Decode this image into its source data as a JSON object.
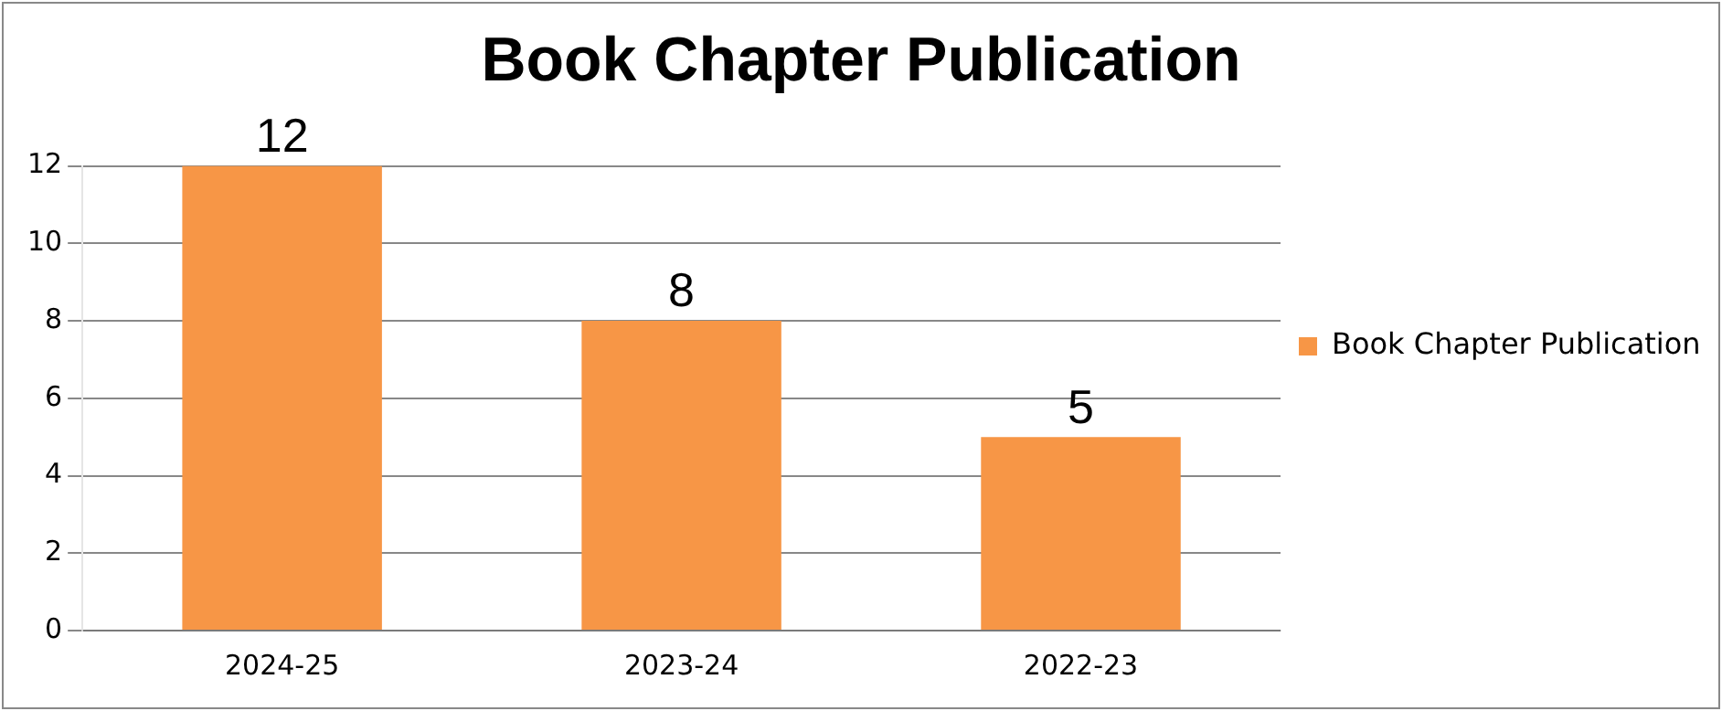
{
  "chart_data": {
    "type": "bar",
    "title": "Book Chapter Publication",
    "categories": [
      "2024-25",
      "2023-24",
      "2022-23"
    ],
    "series": [
      {
        "name": "Book Chapter Publication",
        "color": "#f79646",
        "values": [
          12,
          8,
          5
        ]
      }
    ],
    "ylim": [
      0,
      12
    ],
    "yticks": [
      0,
      2,
      4,
      6,
      8,
      10,
      12
    ],
    "grid": "y",
    "legend": "right",
    "data_labels": true
  }
}
